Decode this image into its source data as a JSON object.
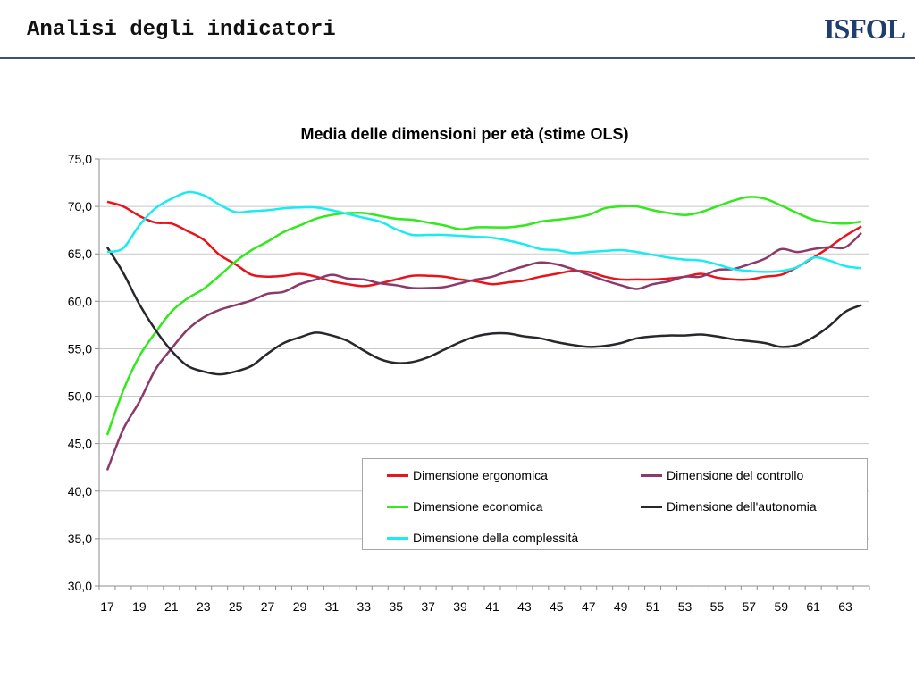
{
  "header": {
    "title": "Analisi degli indicatori",
    "logo_text": "ISFOL",
    "rule_color": "#3d5176"
  },
  "chart_data": {
    "type": "line",
    "title": "Media delle dimensioni per età (stime OLS)",
    "xlabel": "",
    "ylabel": "",
    "x": [
      17,
      18,
      19,
      20,
      21,
      22,
      23,
      24,
      25,
      26,
      27,
      28,
      29,
      30,
      31,
      32,
      33,
      34,
      35,
      36,
      37,
      38,
      39,
      40,
      41,
      42,
      43,
      44,
      45,
      46,
      47,
      48,
      49,
      50,
      51,
      52,
      53,
      54,
      55,
      56,
      57,
      58,
      59,
      60,
      61,
      62,
      63,
      64
    ],
    "x_tick_labels": [
      "17",
      "19",
      "21",
      "23",
      "25",
      "27",
      "29",
      "31",
      "33",
      "35",
      "37",
      "39",
      "41",
      "43",
      "45",
      "47",
      "49",
      "51",
      "53",
      "55",
      "57",
      "59",
      "61",
      "63"
    ],
    "y_tick_labels": [
      "30,0",
      "35,0",
      "40,0",
      "45,0",
      "50,0",
      "55,0",
      "60,0",
      "65,0",
      "70,0",
      "75,0"
    ],
    "ylim": [
      30,
      75
    ],
    "grid": true,
    "legend_position": "bottom-right",
    "series": [
      {
        "name": "Dimensione ergonomica",
        "color": "#e8141c",
        "values": [
          70.5,
          70.0,
          69.0,
          68.3,
          68.2,
          67.4,
          66.5,
          64.9,
          63.9,
          62.8,
          62.6,
          62.7,
          62.9,
          62.6,
          62.1,
          61.8,
          61.6,
          61.9,
          62.3,
          62.7,
          62.7,
          62.6,
          62.3,
          62.1,
          61.8,
          62.0,
          62.2,
          62.6,
          62.9,
          63.2,
          63.1,
          62.6,
          62.3,
          62.3,
          62.3,
          62.4,
          62.6,
          62.9,
          62.5,
          62.3,
          62.3,
          62.6,
          62.8,
          63.6,
          64.6,
          65.7,
          66.9,
          67.9
        ]
      },
      {
        "name": "Dimensione del controllo",
        "color": "#8c3a6a",
        "values": [
          42.2,
          46.5,
          49.4,
          52.8,
          55.0,
          57.0,
          58.3,
          59.1,
          59.6,
          60.1,
          60.8,
          61.0,
          61.8,
          62.3,
          62.8,
          62.4,
          62.3,
          61.9,
          61.7,
          61.4,
          61.4,
          61.5,
          61.9,
          62.3,
          62.6,
          63.2,
          63.7,
          64.1,
          63.9,
          63.4,
          62.8,
          62.2,
          61.7,
          61.3,
          61.8,
          62.1,
          62.6,
          62.6,
          63.3,
          63.4,
          63.9,
          64.5,
          65.5,
          65.2,
          65.5,
          65.7,
          65.7,
          67.2
        ]
      },
      {
        "name": "Dimensione economica",
        "color": "#33e81c",
        "values": [
          45.9,
          50.6,
          54.2,
          56.7,
          58.9,
          60.3,
          61.3,
          62.7,
          64.2,
          65.4,
          66.3,
          67.3,
          68.0,
          68.7,
          69.1,
          69.3,
          69.3,
          69.0,
          68.7,
          68.6,
          68.3,
          68.0,
          67.6,
          67.8,
          67.8,
          67.8,
          68.0,
          68.4,
          68.6,
          68.8,
          69.1,
          69.8,
          70.0,
          70.0,
          69.6,
          69.3,
          69.1,
          69.4,
          70.0,
          70.6,
          71.0,
          70.8,
          70.1,
          69.3,
          68.6,
          68.3,
          68.2,
          68.4
        ]
      },
      {
        "name": "Dimensione dell'autonomia",
        "color": "#26282b",
        "values": [
          65.7,
          63.0,
          59.7,
          57.0,
          54.8,
          53.2,
          52.6,
          52.3,
          52.6,
          53.2,
          54.5,
          55.6,
          56.2,
          56.7,
          56.4,
          55.8,
          54.8,
          53.9,
          53.5,
          53.6,
          54.1,
          54.9,
          55.7,
          56.3,
          56.6,
          56.6,
          56.3,
          56.1,
          55.7,
          55.4,
          55.2,
          55.3,
          55.6,
          56.1,
          56.3,
          56.4,
          56.4,
          56.5,
          56.3,
          56.0,
          55.8,
          55.6,
          55.2,
          55.4,
          56.2,
          57.4,
          58.9,
          59.6
        ]
      },
      {
        "name": "Dimensione della complessità",
        "color": "#19ebf2",
        "values": [
          65.2,
          65.6,
          68.0,
          69.8,
          70.8,
          71.5,
          71.2,
          70.2,
          69.4,
          69.5,
          69.6,
          69.8,
          69.9,
          69.9,
          69.6,
          69.2,
          68.8,
          68.4,
          67.6,
          67.0,
          67.0,
          67.0,
          66.9,
          66.8,
          66.7,
          66.4,
          66.0,
          65.5,
          65.4,
          65.1,
          65.2,
          65.3,
          65.4,
          65.2,
          64.9,
          64.6,
          64.4,
          64.3,
          63.9,
          63.4,
          63.2,
          63.1,
          63.2,
          63.6,
          64.6,
          64.3,
          63.7,
          63.5
        ]
      }
    ]
  }
}
